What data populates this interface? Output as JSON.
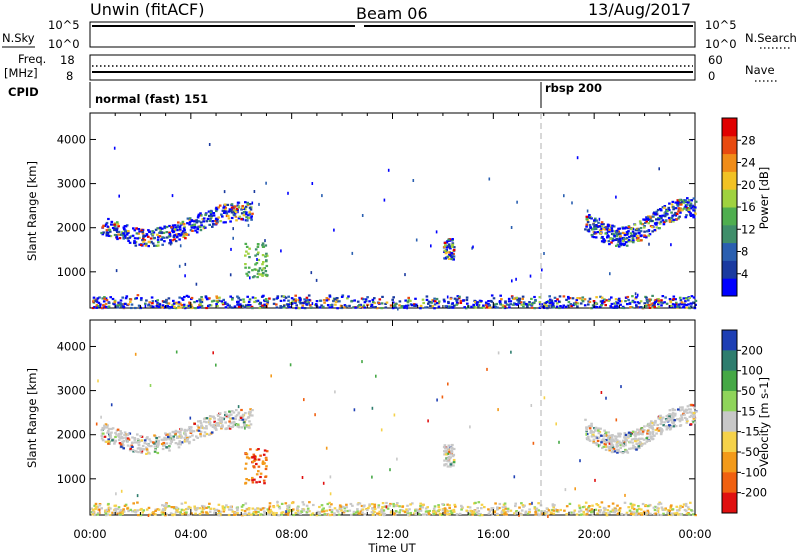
{
  "header": {
    "station": "Unwin (fitACF)",
    "beam": "Beam 06",
    "date": "13/Aug/2017"
  },
  "strips": {
    "noise_left_label": "N.Sky",
    "noise_right_label": "N.Search",
    "noise_ticks_left": [
      "10^5",
      "10^0"
    ],
    "noise_ticks_right": [
      "10^5",
      "10^0"
    ],
    "freq_label_top": "Freq.",
    "freq_label_unit": "[MHz]",
    "freq_ticks": [
      "18",
      "8"
    ],
    "nave_label": "Nave",
    "nave_ticks": [
      "60",
      "0"
    ],
    "cpid_label": "CPID",
    "cpid_segments": [
      {
        "label": "normal (fast) 151",
        "start_hour": 0
      },
      {
        "label": "rbsp 200",
        "start_hour": 18
      }
    ]
  },
  "chart_data": [
    {
      "type": "heatmap",
      "parameter": "Power",
      "ylabel": "Slant Range [km]",
      "xlabel": "",
      "ylim": [
        180,
        4600
      ],
      "xlim_hours": [
        0,
        24
      ],
      "y_ticks": [
        1000,
        2000,
        3000,
        4000
      ],
      "colorbar": {
        "label": "Power [dB]",
        "ticks": [
          "4",
          "8",
          "12",
          "16",
          "20",
          "24",
          "28"
        ],
        "colors": [
          "#0000ff",
          "#1a3aa0",
          "#2a5fb0",
          "#3f8e6a",
          "#4fae4f",
          "#9fd23f",
          "#f2c224",
          "#f08c18",
          "#e84a10",
          "#e00000"
        ]
      },
      "features": [
        {
          "region": "arc",
          "hours": [
            0.4,
            6.4
          ],
          "range_km": [
            1500,
            2700
          ]
        },
        {
          "region": "patch",
          "hours": [
            6.1,
            7.0
          ],
          "range_km": [
            900,
            1700
          ]
        },
        {
          "region": "patch",
          "hours": [
            14.0,
            14.4
          ],
          "range_km": [
            1300,
            1800
          ]
        },
        {
          "region": "arc",
          "hours": [
            19.6,
            24.0
          ],
          "range_km": [
            1500,
            2800
          ]
        },
        {
          "region": "ground_scatter",
          "hours": [
            0,
            24
          ],
          "range_km": [
            200,
            500
          ]
        }
      ]
    },
    {
      "type": "heatmap",
      "parameter": "Velocity",
      "ylabel": "Slant Range [km]",
      "xlabel": "Time UT",
      "ylim": [
        180,
        4600
      ],
      "xlim_hours": [
        0,
        24
      ],
      "y_ticks": [
        1000,
        2000,
        3000,
        4000
      ],
      "x_ticks": [
        "00:00",
        "04:00",
        "08:00",
        "12:00",
        "16:00",
        "20:00",
        "00:00"
      ],
      "colorbar": {
        "label": "Velocity [m s-1]",
        "ticks": [
          "200",
          "100",
          "50",
          "15",
          "-15",
          "-50",
          "-100",
          "-200"
        ],
        "colors": [
          "#1e3fb4",
          "#2e7d6e",
          "#45a845",
          "#8fd45a",
          "#c8c8c8",
          "#f5d24a",
          "#f39a1a",
          "#f06010",
          "#e01010"
        ]
      },
      "features": [
        {
          "region": "arc",
          "hours": [
            0.4,
            6.4
          ],
          "range_km": [
            1500,
            2700
          ]
        },
        {
          "region": "patch",
          "hours": [
            6.1,
            7.0
          ],
          "range_km": [
            900,
            1700
          ]
        },
        {
          "region": "patch",
          "hours": [
            14.0,
            14.4
          ],
          "range_km": [
            1300,
            1800
          ]
        },
        {
          "region": "arc",
          "hours": [
            19.6,
            24.0
          ],
          "range_km": [
            1500,
            2800
          ]
        },
        {
          "region": "ground_scatter",
          "hours": [
            0,
            24
          ],
          "range_km": [
            200,
            500
          ]
        }
      ]
    }
  ]
}
